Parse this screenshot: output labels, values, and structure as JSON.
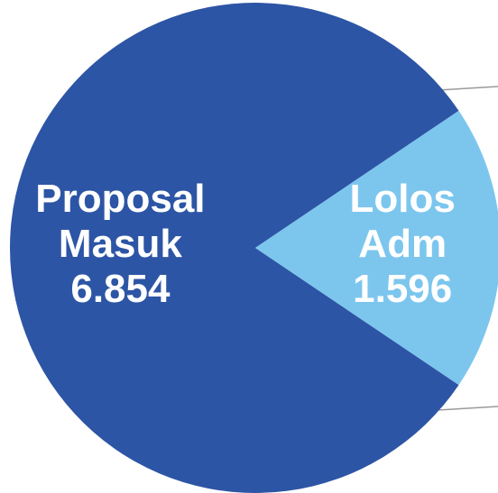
{
  "chart_data": {
    "type": "pie",
    "categories": [
      "Proposal Masuk",
      "Lolos Adm"
    ],
    "values": [
      6854,
      1596
    ],
    "value_labels": [
      "6.854",
      "1.596"
    ],
    "colors": [
      "#2d55a5",
      "#7cc6ee"
    ]
  }
}
